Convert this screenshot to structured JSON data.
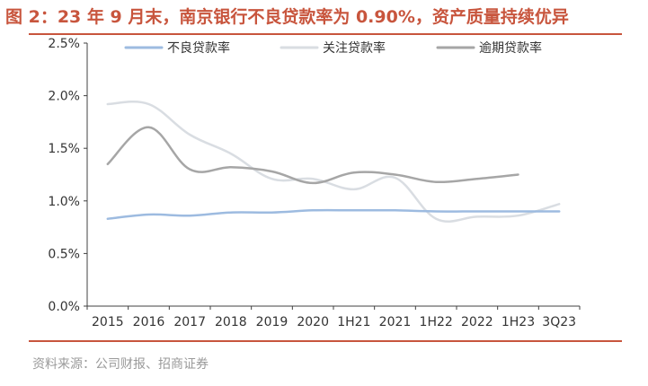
{
  "title": "图 2：23 年 9 月末，南京银行不良贷款率为 0.90%，资产质量持续优异",
  "source": "资料来源：公司财报、招商证券",
  "colors": {
    "accent": "#c8553d",
    "series": [
      "#9dbbe0",
      "#d9dde2",
      "#a6a6a6"
    ],
    "axis": "#404040",
    "text": "#333333"
  },
  "chart_data": {
    "type": "line",
    "categories": [
      "2015",
      "2016",
      "2017",
      "2018",
      "2019",
      "2020",
      "1H21",
      "2021",
      "1H22",
      "2022",
      "1H23",
      "3Q23"
    ],
    "series": [
      {
        "name": "不良贷款率",
        "values": [
          0.83,
          0.87,
          0.86,
          0.89,
          0.89,
          0.91,
          0.91,
          0.91,
          0.9,
          0.9,
          0.9,
          0.9
        ]
      },
      {
        "name": "关注贷款率",
        "values": [
          1.92,
          1.92,
          1.63,
          1.45,
          1.21,
          1.21,
          1.11,
          1.22,
          0.83,
          0.85,
          0.86,
          0.97
        ]
      },
      {
        "name": "逾期贷款率",
        "values": [
          1.35,
          1.7,
          1.3,
          1.32,
          1.28,
          1.17,
          1.27,
          1.25,
          1.18,
          1.21,
          1.25,
          null
        ]
      }
    ],
    "y_ticks": [
      "0.0%",
      "0.5%",
      "1.0%",
      "1.5%",
      "2.0%",
      "2.5%"
    ],
    "ylim": [
      0,
      2.5
    ],
    "grid": false,
    "legend": "top"
  }
}
